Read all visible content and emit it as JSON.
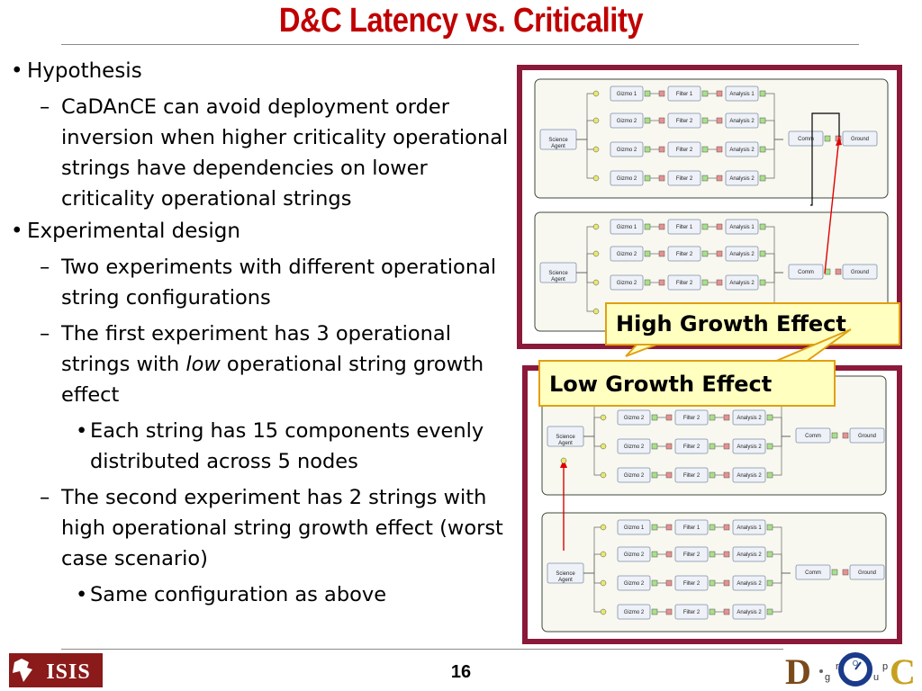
{
  "slide": {
    "title": "D&C Latency vs. Criticality",
    "page_number": "16"
  },
  "bullets": [
    {
      "level": 1,
      "marker": "•",
      "text": "Hypothesis"
    },
    {
      "level": 2,
      "marker": "–",
      "text": "CaDAnCE can avoid deployment order inversion when higher criticality operational strings have dependencies on lower criticality operational strings"
    },
    {
      "level": 1,
      "marker": "•",
      "text": "Experimental design"
    },
    {
      "level": 2,
      "marker": "–",
      "text": "Two experiments with different operational string configurations"
    },
    {
      "level": 2,
      "marker": "–",
      "parts": [
        "The first experiment has 3 operational strings with ",
        "low",
        " operational string growth effect"
      ]
    },
    {
      "level": 3,
      "marker": "•",
      "text": "Each string has 15 components evenly distributed across 5 nodes"
    },
    {
      "level": 2,
      "marker": "–",
      "text": "The second experiment has 2 strings with high operational string growth effect (worst case scenario)"
    },
    {
      "level": 3,
      "marker": "•",
      "text": "Same configuration as above"
    }
  ],
  "diagrams": {
    "top": {
      "strings": [
        {
          "agent": "Science Agent",
          "rows": [
            [
              "Gizmo 1",
              "Filter 1",
              "Analysis 1"
            ],
            [
              "Gizmo 2",
              "Filter 2",
              "Analysis 2"
            ],
            [
              "Gizmo 2",
              "Filter 2",
              "Analysis 2"
            ],
            [
              "Gizmo 2",
              "Filter 2",
              "Analysis 2"
            ]
          ],
          "comm": "Comm",
          "ground": "Ground"
        },
        {
          "agent": "Science Agent",
          "rows": [
            [
              "Gizmo 1",
              "Filter 1",
              "Analysis 1"
            ],
            [
              "Gizmo 2",
              "Filter 2",
              "Analysis 2"
            ],
            [
              "Gizmo 2",
              "Filter 2",
              "Analysis 2"
            ],
            [
              "Gizmo 2",
              "Filter 2",
              "Analysis 2"
            ]
          ],
          "comm": "Comm",
          "ground": "Ground"
        }
      ]
    },
    "bottom": {
      "strings": [
        {
          "agent": "Science Agent",
          "rows": [
            [
              "Gizmo 1",
              "Filter 1",
              "Analysis 1"
            ],
            [
              "Gizmo 2",
              "Filter 2",
              "Analysis 2"
            ],
            [
              "Gizmo 2",
              "Filter 2",
              "Analysis 2"
            ],
            [
              "Gizmo 2",
              "Filter 2",
              "Analysis 2"
            ]
          ],
          "comm": "Comm",
          "ground": "Ground"
        },
        {
          "agent": "Science Agent",
          "rows": [
            [
              "Gizmo 1",
              "Filter 1",
              "Analysis 1"
            ],
            [
              "Gizmo 2",
              "Filter 2",
              "Analysis 2"
            ],
            [
              "Gizmo 2",
              "Filter 2",
              "Analysis 2"
            ],
            [
              "Gizmo 2",
              "Filter 2",
              "Analysis 2"
            ]
          ],
          "comm": "Comm",
          "ground": "Ground"
        }
      ]
    }
  },
  "callouts": {
    "high": "High Growth Effect",
    "low": "Low Growth Effect"
  },
  "logos": {
    "isis": "ISIS",
    "doc_letters": [
      "D",
      "g",
      "r",
      "O",
      "u",
      "p",
      "C"
    ]
  },
  "colors": {
    "title": "#c00000",
    "panel_border": "#8b1a3a",
    "callout_fill": "#ffffc0",
    "callout_border": "#e0a010",
    "dependency_arrow": "#e00000",
    "facet_yellow": "#e8e870",
    "facet_green": "#a8e08a",
    "facet_red": "#e89090"
  }
}
